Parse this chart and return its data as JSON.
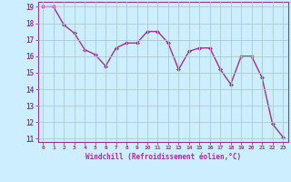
{
  "x": [
    0,
    1,
    2,
    3,
    4,
    5,
    6,
    7,
    8,
    9,
    10,
    11,
    12,
    13,
    14,
    15,
    16,
    17,
    18,
    19,
    20,
    21,
    22,
    23
  ],
  "y": [
    19.0,
    19.0,
    17.9,
    17.4,
    16.4,
    16.1,
    15.4,
    16.5,
    16.8,
    16.8,
    17.5,
    17.5,
    16.8,
    15.2,
    16.3,
    16.5,
    16.5,
    15.2,
    14.3,
    16.0,
    16.0,
    14.7,
    11.9,
    11.1
  ],
  "line_color": "#993399",
  "marker": "D",
  "marker_size": 2.0,
  "line_width": 1.0,
  "bg_color": "#cceeff",
  "grid_color": "#aacccc",
  "xlabel": "Windchill (Refroidissement éolien,°C)",
  "xlabel_color": "#993399",
  "tick_color": "#993399",
  "spine_color": "#993399",
  "ylim": [
    10.8,
    19.3
  ],
  "xlim": [
    -0.5,
    23.5
  ],
  "yticks": [
    11,
    12,
    13,
    14,
    15,
    16,
    17,
    18,
    19
  ],
  "xticks": [
    0,
    1,
    2,
    3,
    4,
    5,
    6,
    7,
    8,
    9,
    10,
    11,
    12,
    13,
    14,
    15,
    16,
    17,
    18,
    19,
    20,
    21,
    22,
    23
  ]
}
